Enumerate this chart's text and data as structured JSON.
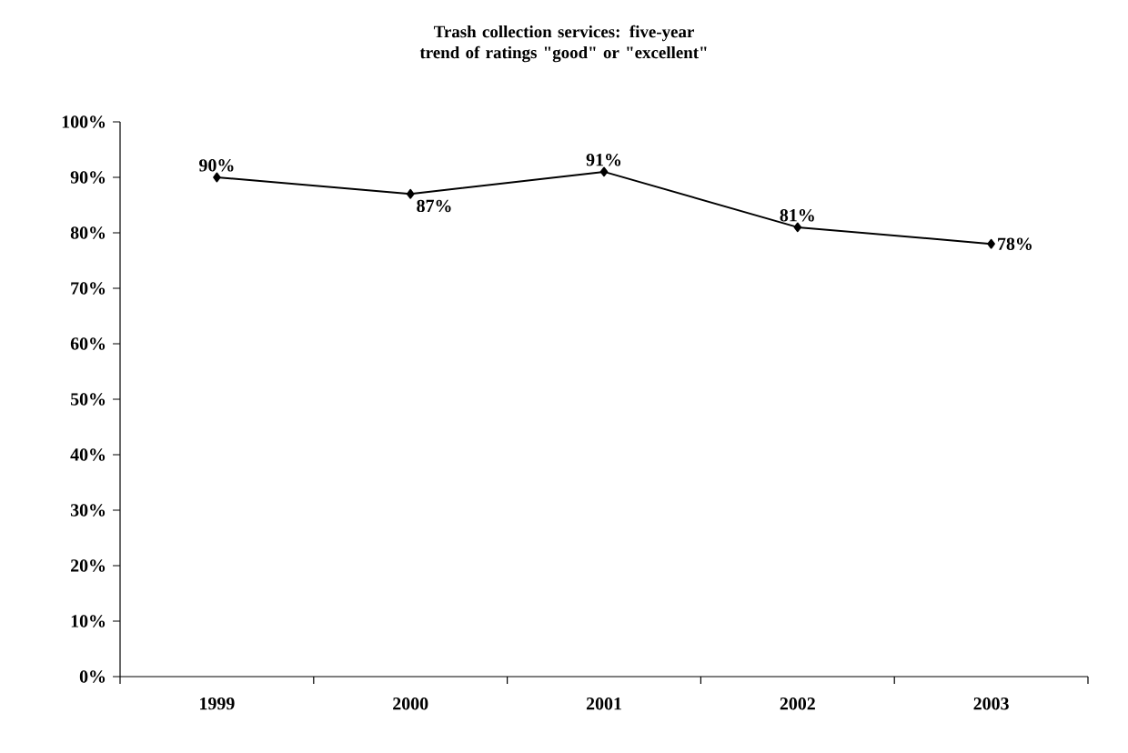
{
  "chart_data": {
    "type": "line",
    "title": "Trash collection services: five-year trend of ratings \"good\" or \"excellent\"",
    "categories": [
      "1999",
      "2000",
      "2001",
      "2002",
      "2003"
    ],
    "series": [
      {
        "color": "#000000",
        "values": [
          90,
          87,
          91,
          81,
          78
        ],
        "value_labels": [
          "90%",
          "87%",
          "91%",
          "81%",
          "78%"
        ]
      }
    ],
    "ylim": [
      0,
      100
    ],
    "yticks": [
      {
        "value": 0,
        "label": "0%"
      },
      {
        "value": 10,
        "label": "10%"
      },
      {
        "value": 20,
        "label": "20%"
      },
      {
        "value": 30,
        "label": "30%"
      },
      {
        "value": 40,
        "label": "40%"
      },
      {
        "value": 50,
        "label": "50%"
      },
      {
        "value": 60,
        "label": "60%"
      },
      {
        "value": 70,
        "label": "70%"
      },
      {
        "value": 80,
        "label": "80%"
      },
      {
        "value": 90,
        "label": "90%"
      },
      {
        "value": 100,
        "label": "100%"
      }
    ],
    "marker": "diamond",
    "line_style": "solid"
  }
}
